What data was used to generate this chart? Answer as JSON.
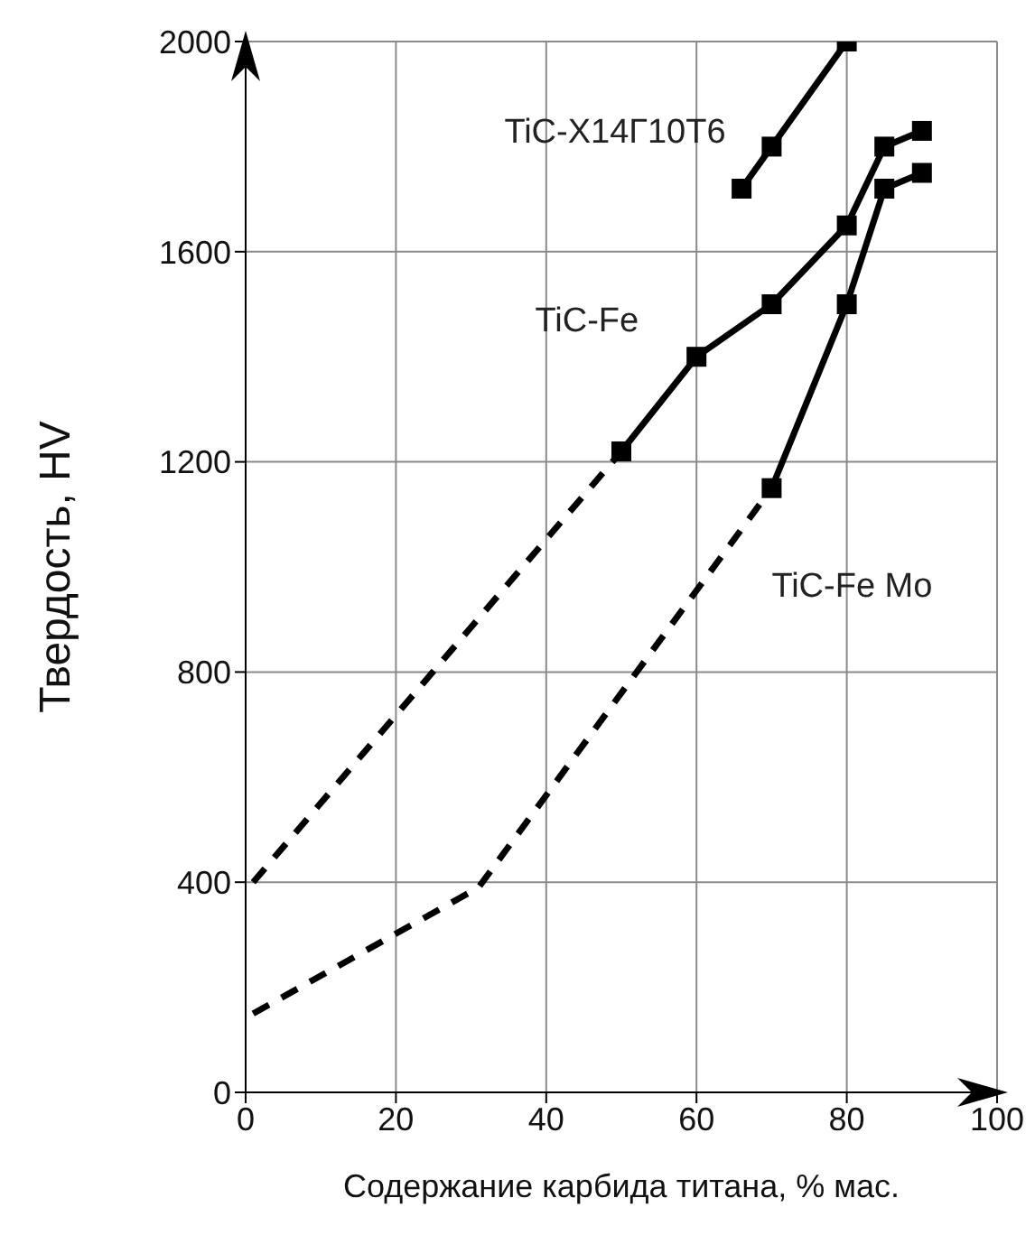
{
  "chart_data": {
    "type": "line",
    "xlabel": "Содержание карбида титана, % мас.",
    "ylabel": "Твердость, HV",
    "xlim": [
      0,
      100
    ],
    "xticks": [
      0,
      20,
      40,
      60,
      80,
      100
    ],
    "ylim": [
      0,
      2000
    ],
    "yticks": [
      0,
      400,
      800,
      1200,
      1600,
      2000
    ],
    "grid": true,
    "series": [
      {
        "name": "TiC-Х14Г10Т6",
        "color": "#000000",
        "marker": "square",
        "line_style": "solid",
        "x": [
          66,
          70,
          80
        ],
        "values": [
          1720,
          1800,
          2000
        ]
      },
      {
        "name": "TiC-Fe",
        "color": "#000000",
        "marker": "square",
        "line_style": "solid",
        "x": [
          50,
          60,
          70,
          80,
          85,
          90
        ],
        "values": [
          1220,
          1400,
          1500,
          1650,
          1800,
          1830
        ]
      },
      {
        "name": "TiC-Fe Mo",
        "color": "#000000",
        "marker": "square",
        "line_style": "solid",
        "x": [
          70,
          80,
          85,
          90
        ],
        "values": [
          1150,
          1500,
          1720,
          1750
        ]
      },
      {
        "color": "#000000",
        "marker": "none",
        "line_style": "dashed",
        "x": [
          1,
          50
        ],
        "values": [
          400,
          1220
        ]
      },
      {
        "color": "#000000",
        "marker": "none",
        "line_style": "dashed",
        "x": [
          1,
          31,
          70
        ],
        "values": [
          150,
          390,
          1150
        ]
      }
    ]
  }
}
